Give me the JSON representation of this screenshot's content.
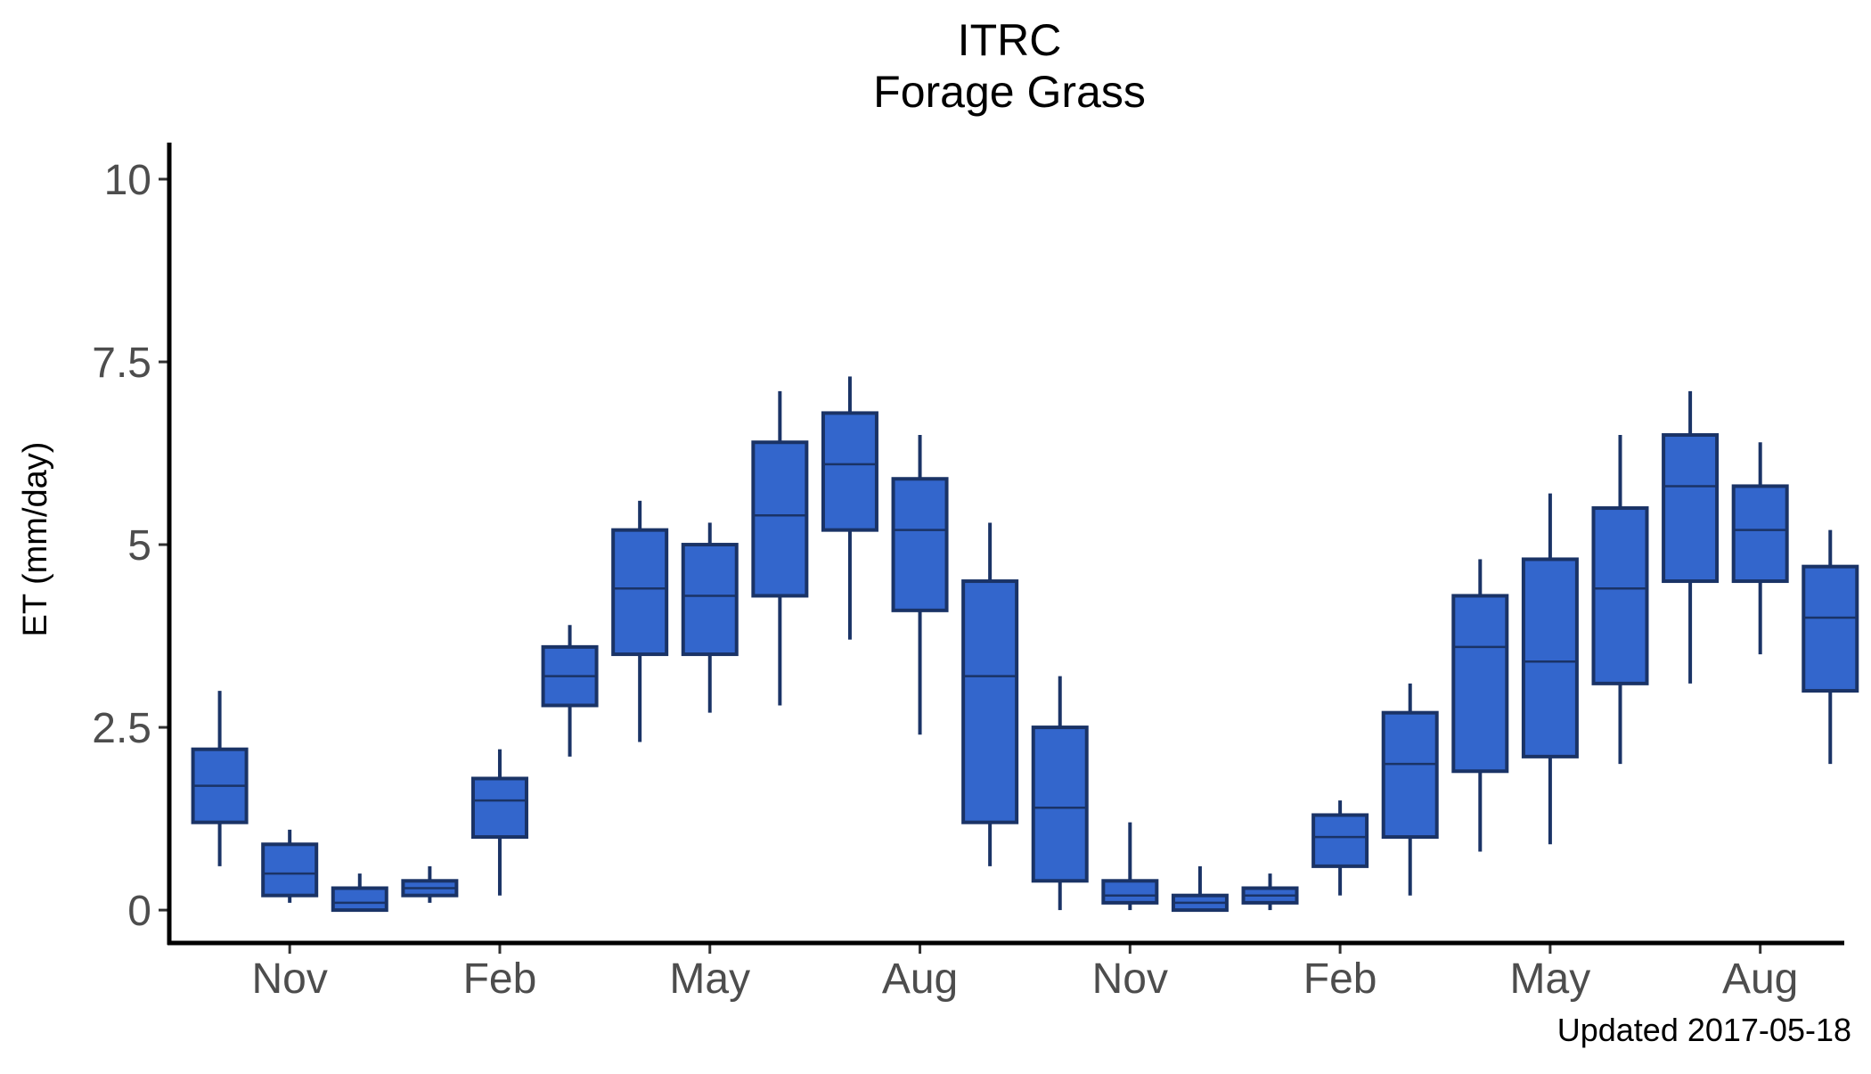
{
  "chart_data": {
    "type": "boxplot",
    "title": "ITRC",
    "subtitle": "Forage Grass",
    "ylabel": "ET (mm/day)",
    "xlabel": "",
    "ylim": [
      -0.45,
      10.5
    ],
    "xlim": [
      -0.72,
      23.2
    ],
    "yticks": [
      {
        "value": 0,
        "label": "0"
      },
      {
        "value": 2.5,
        "label": "2.5"
      },
      {
        "value": 5,
        "label": "5"
      },
      {
        "value": 7.5,
        "label": "7.5"
      },
      {
        "value": 10,
        "label": "10"
      }
    ],
    "xticks": [
      {
        "value": 1,
        "label": "Nov"
      },
      {
        "value": 4,
        "label": "Feb"
      },
      {
        "value": 7,
        "label": "May"
      },
      {
        "value": 10,
        "label": "Aug"
      },
      {
        "value": 13,
        "label": "Nov"
      },
      {
        "value": 16,
        "label": "Feb"
      },
      {
        "value": 19,
        "label": "May"
      },
      {
        "value": 22,
        "label": "Aug"
      }
    ],
    "grid": false,
    "fill_color": "#3366cc",
    "line_color": "#1a3366",
    "boxes": [
      {
        "x": 0,
        "min": 0.6,
        "q1": 1.2,
        "median": 1.7,
        "q3": 2.2,
        "max": 3.0
      },
      {
        "x": 1,
        "min": 0.1,
        "q1": 0.2,
        "median": 0.5,
        "q3": 0.9,
        "max": 1.1
      },
      {
        "x": 2,
        "min": 0.0,
        "q1": 0.0,
        "median": 0.1,
        "q3": 0.3,
        "max": 0.5
      },
      {
        "x": 3,
        "min": 0.1,
        "q1": 0.2,
        "median": 0.3,
        "q3": 0.4,
        "max": 0.6
      },
      {
        "x": 4,
        "min": 0.2,
        "q1": 1.0,
        "median": 1.5,
        "q3": 1.8,
        "max": 2.2
      },
      {
        "x": 5,
        "min": 2.1,
        "q1": 2.8,
        "median": 3.2,
        "q3": 3.6,
        "max": 3.9
      },
      {
        "x": 6,
        "min": 2.3,
        "q1": 3.5,
        "median": 4.4,
        "q3": 5.2,
        "max": 5.6
      },
      {
        "x": 7,
        "min": 2.7,
        "q1": 3.5,
        "median": 4.3,
        "q3": 5.0,
        "max": 5.3
      },
      {
        "x": 8,
        "min": 2.8,
        "q1": 4.3,
        "median": 5.4,
        "q3": 6.4,
        "max": 7.1
      },
      {
        "x": 9,
        "min": 3.7,
        "q1": 5.2,
        "median": 6.1,
        "q3": 6.8,
        "max": 7.3
      },
      {
        "x": 10,
        "min": 2.4,
        "q1": 4.1,
        "median": 5.2,
        "q3": 5.9,
        "max": 6.5
      },
      {
        "x": 11,
        "min": 0.6,
        "q1": 1.2,
        "median": 3.2,
        "q3": 4.5,
        "max": 5.3
      },
      {
        "x": 12,
        "min": 0.0,
        "q1": 0.4,
        "median": 1.4,
        "q3": 2.5,
        "max": 3.2
      },
      {
        "x": 13,
        "min": 0.0,
        "q1": 0.1,
        "median": 0.2,
        "q3": 0.4,
        "max": 1.2
      },
      {
        "x": 14,
        "min": 0.0,
        "q1": 0.0,
        "median": 0.1,
        "q3": 0.2,
        "max": 0.6
      },
      {
        "x": 15,
        "min": 0.0,
        "q1": 0.1,
        "median": 0.2,
        "q3": 0.3,
        "max": 0.5
      },
      {
        "x": 16,
        "min": 0.2,
        "q1": 0.6,
        "median": 1.0,
        "q3": 1.3,
        "max": 1.5
      },
      {
        "x": 17,
        "min": 0.2,
        "q1": 1.0,
        "median": 2.0,
        "q3": 2.7,
        "max": 3.1
      },
      {
        "x": 18,
        "min": 0.8,
        "q1": 1.9,
        "median": 3.6,
        "q3": 4.3,
        "max": 4.8
      },
      {
        "x": 19,
        "min": 0.9,
        "q1": 2.1,
        "median": 3.4,
        "q3": 4.8,
        "max": 5.7
      },
      {
        "x": 20,
        "min": 2.0,
        "q1": 3.1,
        "median": 4.4,
        "q3": 5.5,
        "max": 6.5
      },
      {
        "x": 21,
        "min": 3.1,
        "q1": 4.5,
        "median": 5.8,
        "q3": 6.5,
        "max": 7.1
      },
      {
        "x": 22,
        "min": 3.5,
        "q1": 4.5,
        "median": 5.2,
        "q3": 5.8,
        "max": 6.4
      },
      {
        "x": 23,
        "min": 2.0,
        "q1": 3.0,
        "median": 4.0,
        "q3": 4.7,
        "max": 5.2
      }
    ]
  },
  "caption": "Updated  2017-05-18"
}
